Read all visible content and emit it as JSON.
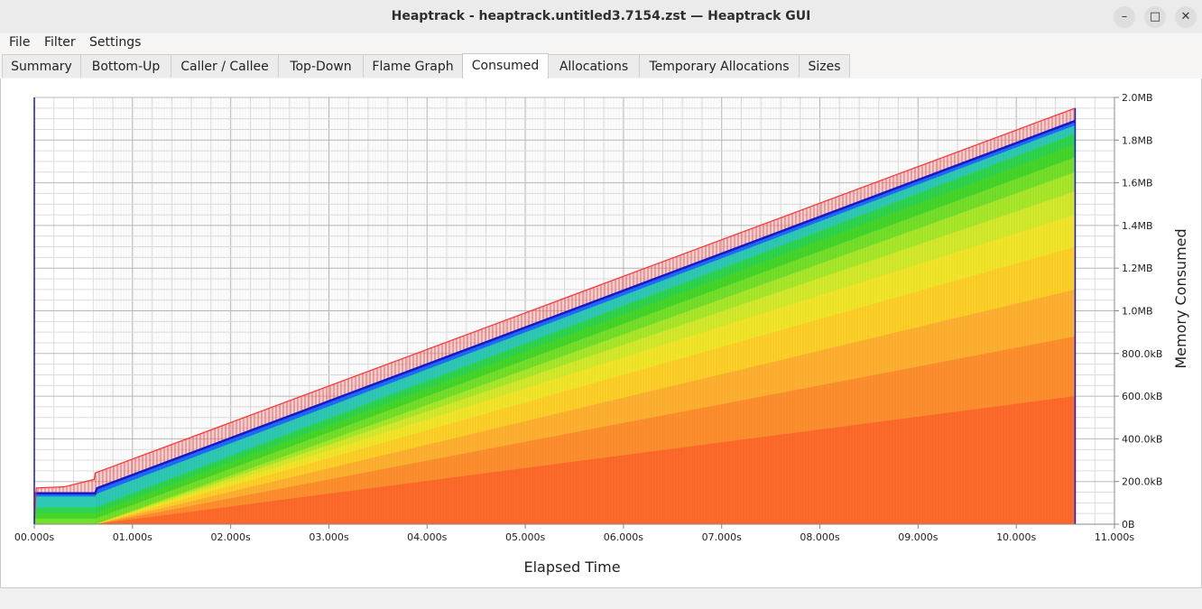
{
  "window": {
    "title": "Heaptrack - heaptrack.untitled3.7154.zst — Heaptrack GUI",
    "controls": {
      "minimize": "–",
      "maximize": "□",
      "close": "✕"
    }
  },
  "menubar": {
    "items": [
      {
        "label": "File",
        "mnemonic": "F"
      },
      {
        "label": "Filter"
      },
      {
        "label": "Settings",
        "mnemonic": "n"
      }
    ]
  },
  "tabs": [
    {
      "label": "Summary"
    },
    {
      "label": "Bottom-Up"
    },
    {
      "label": "Caller / Callee"
    },
    {
      "label": "Top-Down"
    },
    {
      "label": "Flame Graph"
    },
    {
      "label": "Consumed",
      "active": true
    },
    {
      "label": "Allocations"
    },
    {
      "label": "Temporary Allocations"
    },
    {
      "label": "Sizes"
    }
  ],
  "chart_data": {
    "type": "area",
    "stacked": true,
    "xlabel": "Elapsed Time",
    "ylabel": "Memory Consumed",
    "xlim": [
      0,
      11
    ],
    "ylim": [
      0,
      2.0
    ],
    "y_axis_side": "right",
    "grid": true,
    "x_tick_labels": [
      "00.000s",
      "01.000s",
      "02.000s",
      "03.000s",
      "04.000s",
      "05.000s",
      "06.000s",
      "07.000s",
      "08.000s",
      "09.000s",
      "10.000s",
      "11.000s"
    ],
    "y_tick_labels": [
      "0B",
      "200.0kB",
      "400.0kB",
      "600.0kB",
      "800.0kB",
      "1.0MB",
      "1.2MB",
      "1.4MB",
      "1.6MB",
      "1.8MB",
      "2.0MB"
    ],
    "y_tick_values_MB": [
      0,
      0.2,
      0.4,
      0.6,
      0.8,
      1.0,
      1.2,
      1.4,
      1.6,
      1.8,
      2.0
    ],
    "x": [
      0.0,
      0.02,
      0.6,
      0.62,
      10.6
    ],
    "total_MB": [
      0.0,
      0.17,
      0.18,
      0.24,
      1.95
    ],
    "series_end_MB": [
      0.6,
      0.88,
      1.1,
      1.3,
      1.45,
      1.56,
      1.65,
      1.72,
      1.78,
      1.83,
      1.87,
      1.89
    ],
    "series_colors": [
      "#ff6a2b",
      "#ff8f2e",
      "#ffb031",
      "#ffd028",
      "#f2e62a",
      "#d4ea2b",
      "#a9e82b",
      "#74e02a",
      "#44d62a",
      "#2fd44f",
      "#2ec9b2",
      "#1f6bff"
    ],
    "overlay_color": "#f08080",
    "outline_color": "#ff3030",
    "peak_line_color": "#1818c8",
    "end_time_s": 10.6
  }
}
